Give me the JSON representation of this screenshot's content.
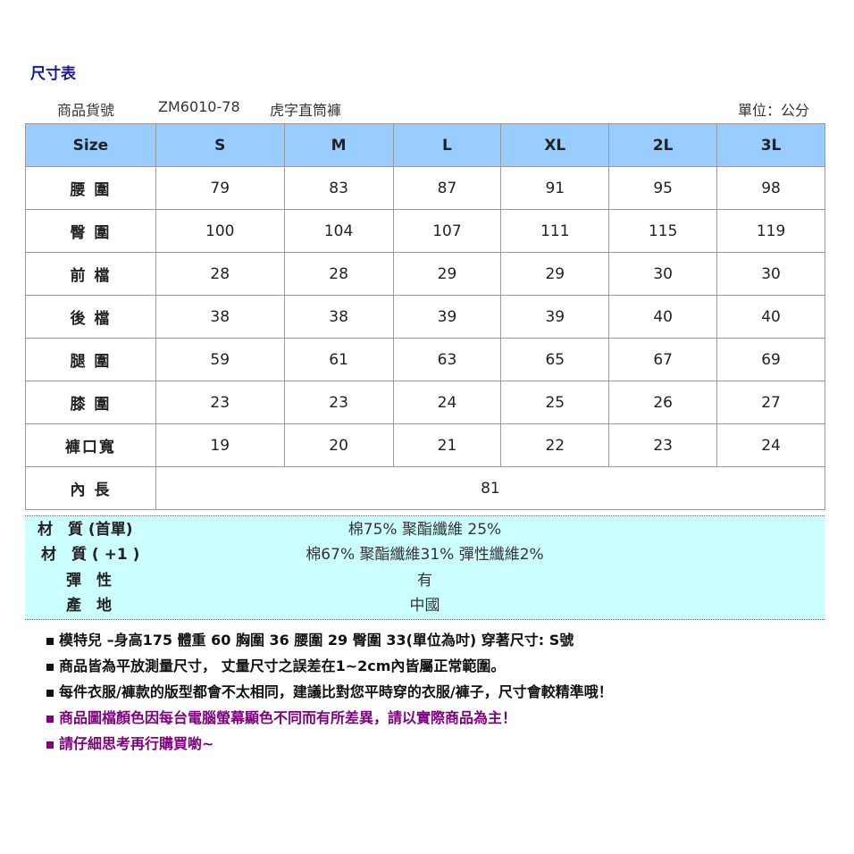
{
  "title": "尺寸表",
  "product": {
    "label": "商品貨號",
    "code": "ZM6010-78",
    "name": "虎字直筒褲",
    "unit": "單位：公分"
  },
  "table": {
    "headers": [
      "Size",
      "S",
      "M",
      "L",
      "XL",
      "2L",
      "3L"
    ],
    "rows": [
      {
        "label": "腰 圍",
        "values": [
          "79",
          "83",
          "87",
          "91",
          "95",
          "98"
        ]
      },
      {
        "label": "臀 圍",
        "values": [
          "100",
          "104",
          "107",
          "111",
          "115",
          "119"
        ]
      },
      {
        "label": "前 檔",
        "values": [
          "28",
          "28",
          "29",
          "29",
          "30",
          "30"
        ]
      },
      {
        "label": "後 檔",
        "values": [
          "38",
          "38",
          "39",
          "39",
          "40",
          "40"
        ]
      },
      {
        "label": "腿 圍",
        "values": [
          "59",
          "61",
          "63",
          "65",
          "67",
          "69"
        ]
      },
      {
        "label": "膝 圍",
        "values": [
          "23",
          "23",
          "24",
          "25",
          "26",
          "27"
        ]
      },
      {
        "label": "褲口寬",
        "values": [
          "19",
          "20",
          "21",
          "22",
          "23",
          "24"
        ]
      }
    ],
    "inseam": {
      "label": "內 長",
      "value": "81"
    }
  },
  "material": [
    {
      "label": "材　質 (首單)",
      "value": "棉75%  聚酯纖維 25%"
    },
    {
      "label": "材　質 ( +1 )",
      "value": "棉67%  聚酯纖維31%  彈性纖維2%"
    },
    {
      "label": "彈　性",
      "value": "有"
    },
    {
      "label": "產　地",
      "value": "中國"
    }
  ],
  "notes": [
    {
      "text": "模特兒 –身高175 體重 60 胸圍 36 腰圍 29 臀圍 33(單位為吋)   穿著尺寸: S號",
      "color": "#111111"
    },
    {
      "text": "商品皆為平放測量尺寸，  丈量尺寸之誤差在1~2cm內皆屬正常範圍。",
      "color": "#111111"
    },
    {
      "text": "每件衣服/褲款的版型都會不太相同，建議比對您平時穿的衣服/褲子，尺寸會較精準哦！",
      "color": "#111111"
    },
    {
      "text": "商品圖檔顏色因每台電腦螢幕顯色不同而有所差異，請以實際商品為主！",
      "color": "#800080"
    },
    {
      "text": "請仔細思考再行購買喲~",
      "color": "#800080"
    }
  ],
  "colors": {
    "header_bg": "#99ccff",
    "material_bg": "#ccffff",
    "title": "#1a1aa0",
    "accent": "#800080"
  }
}
